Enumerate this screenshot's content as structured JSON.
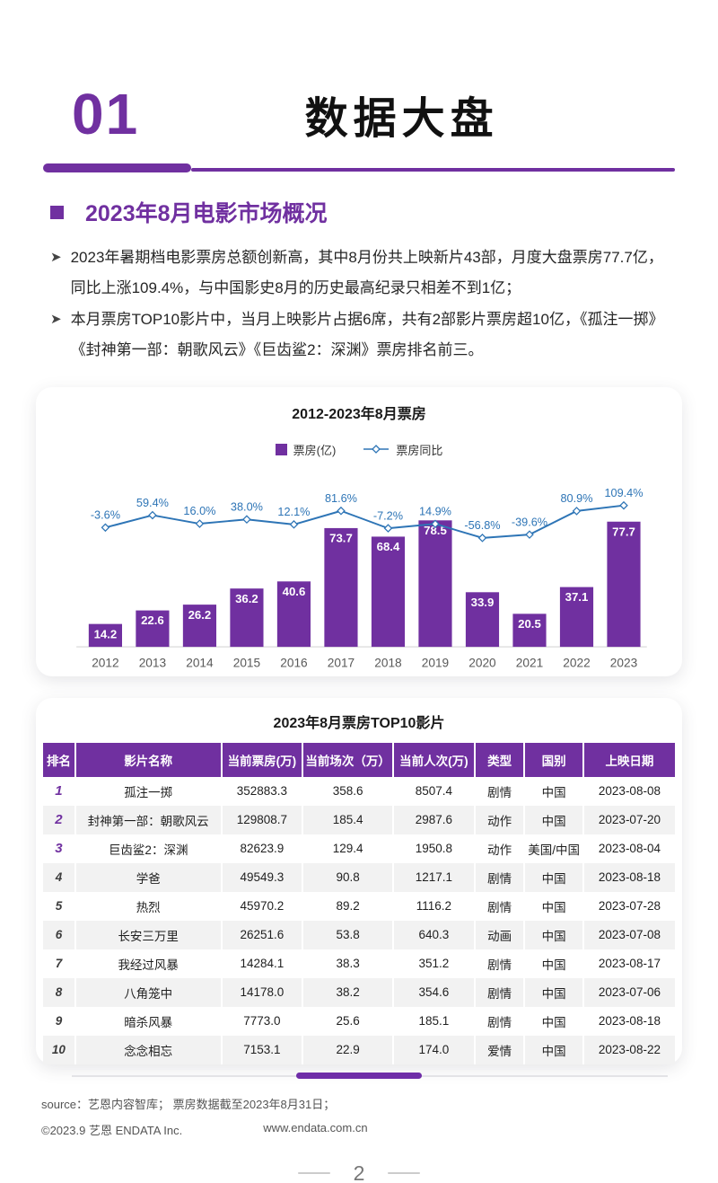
{
  "header": {
    "section_number": "01",
    "title": "数据大盘"
  },
  "section": {
    "heading": "2023年8月电影市场概况",
    "bullets": [
      "2023年暑期档电影票房总额创新高，其中8月份共上映新片43部，月度大盘票房77.7亿，同比上涨109.4%，与中国影史8月的历史最高纪录只相差不到1亿；",
      "本月票房TOP10影片中，当月上映影片占据6席，共有2部影片票房超10亿，《孤注一掷》《封神第一部：朝歌风云》《巨齿鲨2：深渊》票房排名前三。"
    ]
  },
  "colors": {
    "primary_purple": "#7030A0",
    "line_blue": "#2E75B6",
    "row_alt_gray": "#F2F2F2",
    "axis_gray": "#E0E0E0",
    "xlabel_gray": "#595959"
  },
  "chart_data": {
    "type": "bar+line",
    "title": "2012-2023年8月票房",
    "legend": [
      {
        "label": "票房(亿)",
        "type": "bar",
        "color": "#7030A0"
      },
      {
        "label": "票房同比",
        "type": "line",
        "color": "#2E75B6"
      }
    ],
    "categories": [
      "2012",
      "2013",
      "2014",
      "2015",
      "2016",
      "2017",
      "2018",
      "2019",
      "2020",
      "2021",
      "2022",
      "2023"
    ],
    "series": [
      {
        "name": "票房(亿)",
        "type": "bar",
        "values": [
          14.2,
          22.6,
          26.2,
          36.2,
          40.6,
          73.7,
          68.4,
          78.5,
          33.9,
          20.5,
          37.1,
          77.7
        ]
      },
      {
        "name": "票房同比",
        "type": "line",
        "unit": "%",
        "values": [
          -3.6,
          59.4,
          16.0,
          38.0,
          12.1,
          81.6,
          -7.2,
          14.9,
          -56.8,
          -39.6,
          80.9,
          109.4
        ]
      }
    ],
    "grid": false,
    "legend_position": "top",
    "value_labels": "inside-bar-top and above-line-points"
  },
  "table": {
    "title": "2023年8月票房TOP10影片",
    "headers": [
      "排名",
      "影片名称",
      "当前票房(万)",
      "当前场次（万）",
      "当前人次(万)",
      "类型",
      "国别",
      "上映日期"
    ],
    "col_widths_pct": [
      5.1,
      23.1,
      12.9,
      14.3,
      12.9,
      7.9,
      9.3,
      14.5
    ],
    "rows": [
      [
        "1",
        "孤注一掷",
        "352883.3",
        "358.6",
        "8507.4",
        "剧情",
        "中国",
        "2023-08-08"
      ],
      [
        "2",
        "封神第一部：朝歌风云",
        "129808.7",
        "185.4",
        "2987.6",
        "动作",
        "中国",
        "2023-07-20"
      ],
      [
        "3",
        "巨齿鲨2：深渊",
        "82623.9",
        "129.4",
        "1950.8",
        "动作",
        "美国/中国",
        "2023-08-04"
      ],
      [
        "4",
        "学爸",
        "49549.3",
        "90.8",
        "1217.1",
        "剧情",
        "中国",
        "2023-08-18"
      ],
      [
        "5",
        "热烈",
        "45970.2",
        "89.2",
        "1116.2",
        "剧情",
        "中国",
        "2023-07-28"
      ],
      [
        "6",
        "长安三万里",
        "26251.6",
        "53.8",
        "640.3",
        "动画",
        "中国",
        "2023-07-08"
      ],
      [
        "7",
        "我经过风暴",
        "14284.1",
        "38.3",
        "351.2",
        "剧情",
        "中国",
        "2023-08-17"
      ],
      [
        "8",
        "八角笼中",
        "14178.0",
        "38.2",
        "354.6",
        "剧情",
        "中国",
        "2023-07-06"
      ],
      [
        "9",
        "暗杀风暴",
        "7773.0",
        "25.6",
        "185.1",
        "剧情",
        "中国",
        "2023-08-18"
      ],
      [
        "10",
        "念念相忘",
        "7153.1",
        "22.9",
        "174.0",
        "爱情",
        "中国",
        "2023-08-22"
      ]
    ]
  },
  "footer": {
    "source_line": "source：艺恩内容智库；  票房数据截至2023年8月31日；",
    "copyright": "©2023.9 艺恩 ENDATA Inc.",
    "website": "www.endata.com.cn",
    "page_number": "2"
  }
}
